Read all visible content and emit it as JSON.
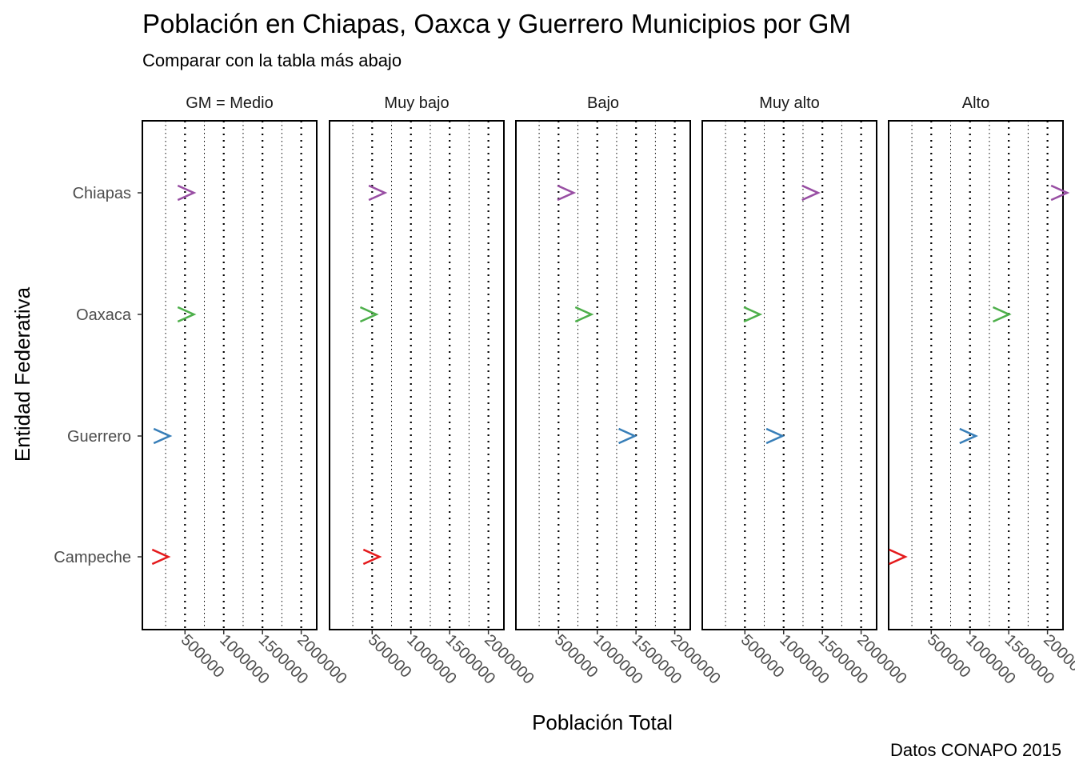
{
  "chart_data": {
    "type": "scatter",
    "title": "Población en Chiapas, Oaxca y Guerrero Municipios por GM",
    "subtitle": "Comparar con la tabla más abajo",
    "caption": "Datos CONAPO 2015",
    "xlabel": "Población Total",
    "ylabel": "Entidad Federativa",
    "categories": [
      "Campeche",
      "Guerrero",
      "Oaxaca",
      "Chiapas"
    ],
    "xlim": [
      -50000,
      2200000
    ],
    "xticks": [
      500000,
      1000000,
      1500000,
      2000000
    ],
    "xtick_labels": [
      "500000",
      "1000000",
      "1500000",
      "2000000"
    ],
    "grid": "vertical dotted",
    "marker": ">",
    "facet_prefix": "GM = ",
    "colors": {
      "Campeche": "#E41A1C",
      "Guerrero": "#377EB8",
      "Oaxaca": "#4DAF4A",
      "Chiapas": "#984EA3"
    },
    "facets": [
      {
        "label": "Medio",
        "show_prefix": true,
        "points": [
          {
            "category": "Campeche",
            "x": 180000
          },
          {
            "category": "Guerrero",
            "x": 200000
          },
          {
            "category": "Oaxaca",
            "x": 510000
          },
          {
            "category": "Chiapas",
            "x": 510000
          }
        ]
      },
      {
        "label": "Muy bajo",
        "show_prefix": false,
        "points": [
          {
            "category": "Campeche",
            "x": 490000
          },
          {
            "category": "Oaxaca",
            "x": 450000
          },
          {
            "category": "Chiapas",
            "x": 560000
          }
        ]
      },
      {
        "label": "Bajo",
        "show_prefix": false,
        "points": [
          {
            "category": "Guerrero",
            "x": 1380000
          },
          {
            "category": "Oaxaca",
            "x": 820000
          },
          {
            "category": "Chiapas",
            "x": 590000
          }
        ]
      },
      {
        "label": "Muy alto",
        "show_prefix": false,
        "points": [
          {
            "category": "Guerrero",
            "x": 880000
          },
          {
            "category": "Oaxaca",
            "x": 590000
          },
          {
            "category": "Chiapas",
            "x": 1340000
          }
        ]
      },
      {
        "label": "Alto",
        "show_prefix": false,
        "points": [
          {
            "category": "Campeche",
            "x": 60000
          },
          {
            "category": "Guerrero",
            "x": 970000
          },
          {
            "category": "Oaxaca",
            "x": 1400000
          },
          {
            "category": "Chiapas",
            "x": 2150000
          }
        ]
      }
    ]
  }
}
